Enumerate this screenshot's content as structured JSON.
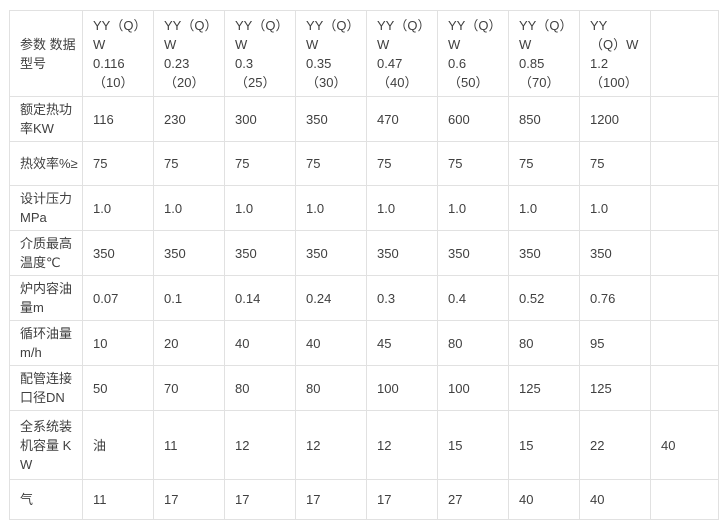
{
  "style": {
    "text_color": "#404040",
    "border_color": "#e1e1e1",
    "background_color": "#ffffff"
  },
  "table": {
    "corner_label": "参数 数据\n型号",
    "columns": [
      "YY（Q）\nW\n0.116\n（10）",
      "YY（Q）\nW\n0.23\n（20）",
      "YY（Q）\nW\n0.3\n（25）",
      "YY（Q）\nW\n0.35\n（30）",
      "YY（Q）\nW\n0.47\n（40）",
      "YY（Q）\nW\n0.6\n（50）",
      "YY（Q）\nW\n0.85\n（70）",
      "YY\n（Q）W\n1.2\n（100）",
      ""
    ],
    "rows": [
      {
        "label": "额定热功\n率KW",
        "values": [
          "116",
          "230",
          "300",
          "350",
          "470",
          "600",
          "850",
          "1200",
          ""
        ]
      },
      {
        "label": "热效率%≥",
        "values": [
          "75",
          "75",
          "75",
          "75",
          "75",
          "75",
          "75",
          "75",
          ""
        ]
      },
      {
        "label": "设计压力\nMPa",
        "values": [
          "1.0",
          "1.0",
          "1.0",
          "1.0",
          "1.0",
          "1.0",
          "1.0",
          "1.0",
          ""
        ]
      },
      {
        "label": "介质最高\n温度℃",
        "values": [
          "350",
          "350",
          "350",
          "350",
          "350",
          "350",
          "350",
          "350",
          ""
        ]
      },
      {
        "label": "炉内容油\n量m",
        "values": [
          "0.07",
          "0.1",
          "0.14",
          "0.24",
          "0.3",
          "0.4",
          "0.52",
          "0.76",
          ""
        ]
      },
      {
        "label": "循环油量\nm/h",
        "values": [
          "10",
          "20",
          "40",
          "40",
          "45",
          "80",
          "80",
          "95",
          ""
        ]
      },
      {
        "label": "配管连接\n口径DN",
        "values": [
          "50",
          "70",
          "80",
          "80",
          "100",
          "100",
          "125",
          "125",
          ""
        ]
      },
      {
        "label": "全系统装\n机容量 K\nW",
        "values": [
          "油",
          "11",
          "12",
          "12",
          "12",
          "15",
          "15",
          "22",
          "40"
        ]
      },
      {
        "label": "气",
        "values": [
          "11",
          "17",
          "17",
          "17",
          "17",
          "27",
          "40",
          "40",
          ""
        ]
      }
    ]
  }
}
